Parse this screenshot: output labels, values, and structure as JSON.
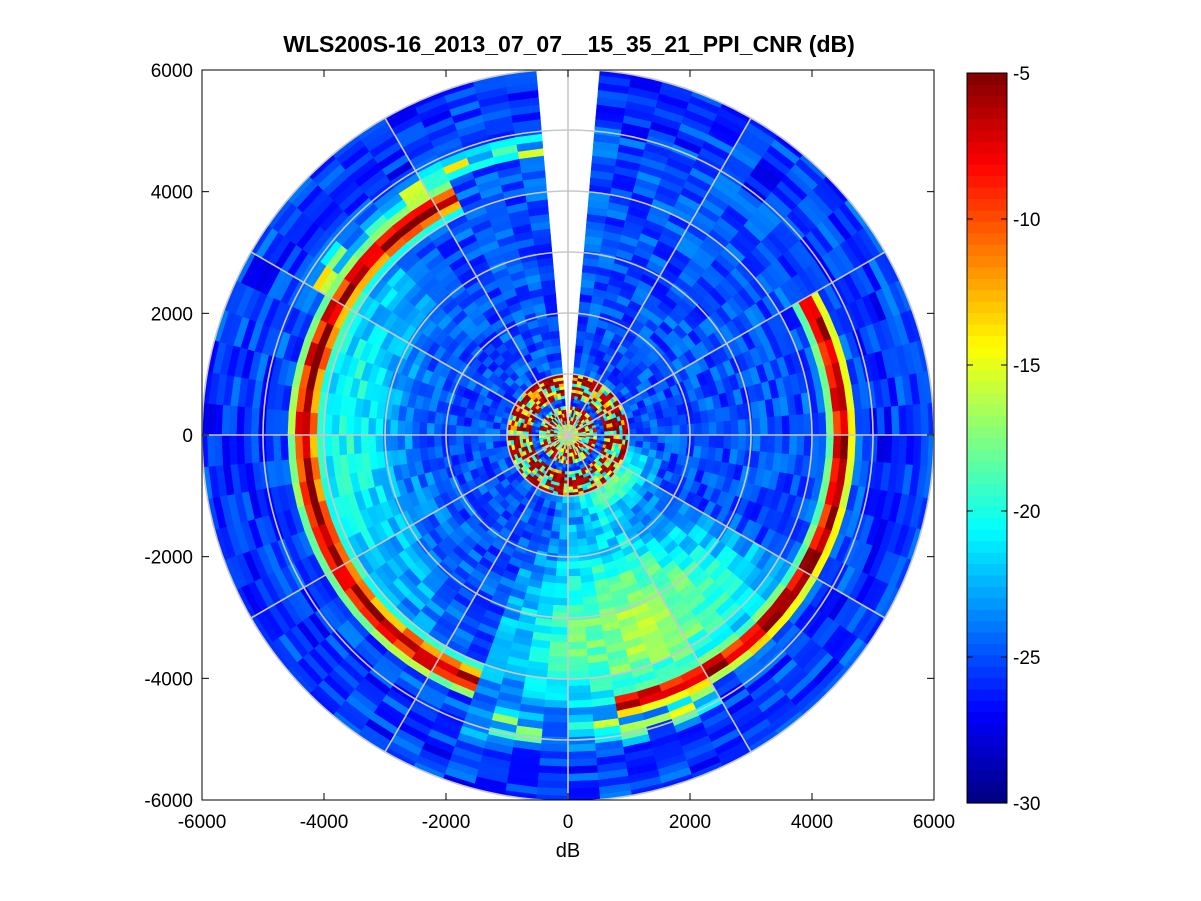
{
  "chart_data": {
    "type": "heatmap",
    "subtype": "polar-ppi",
    "title": "WLS200S-16_2013_07_07__15_35_21_PPI_CNR (dB)",
    "xlabel": "dB",
    "ylabel": "",
    "xlim": [
      -6000,
      6000
    ],
    "ylim": [
      -6000,
      6000
    ],
    "xticks": [
      "-6000",
      "-4000",
      "-2000",
      "0",
      "2000",
      "4000",
      "6000"
    ],
    "yticks": [
      "6000",
      "4000",
      "2000",
      "0",
      "-2000",
      "-4000",
      "-6000"
    ],
    "range_max": 6000,
    "range_rings": [
      1000,
      2000,
      3000,
      4000,
      5000,
      6000
    ],
    "spokes_deg": [
      0,
      30,
      60,
      90,
      120,
      150,
      180,
      210,
      240,
      270,
      300,
      330
    ],
    "blanked_sector_deg": [
      -4,
      4
    ],
    "colorbar": {
      "min": -30,
      "max": -5,
      "ticks": [
        "-5",
        "-10",
        "-15",
        "-20",
        "-25",
        "-30"
      ],
      "colormap": "jet"
    },
    "background_cnr_db": -25,
    "features": [
      {
        "name": "near-range clutter ring",
        "range_m": [
          600,
          1000
        ],
        "cnr_db": -5
      },
      {
        "name": "inner clutter ring",
        "range_m": [
          250,
          500
        ],
        "cnr_db": -6
      },
      {
        "name": "western arc",
        "range_m": [
          4100,
          4600
        ],
        "azimuth_deg": [
          200,
          330
        ],
        "cnr_db": -6
      },
      {
        "name": "eastern arc",
        "range_m": [
          4400,
          4700
        ],
        "azimuth_deg": [
          60,
          170
        ],
        "cnr_db": -5
      },
      {
        "name": "southern enhanced region",
        "range_m": [
          1500,
          4500
        ],
        "azimuth_deg": [
          120,
          190
        ],
        "cnr_db": -18
      }
    ]
  }
}
